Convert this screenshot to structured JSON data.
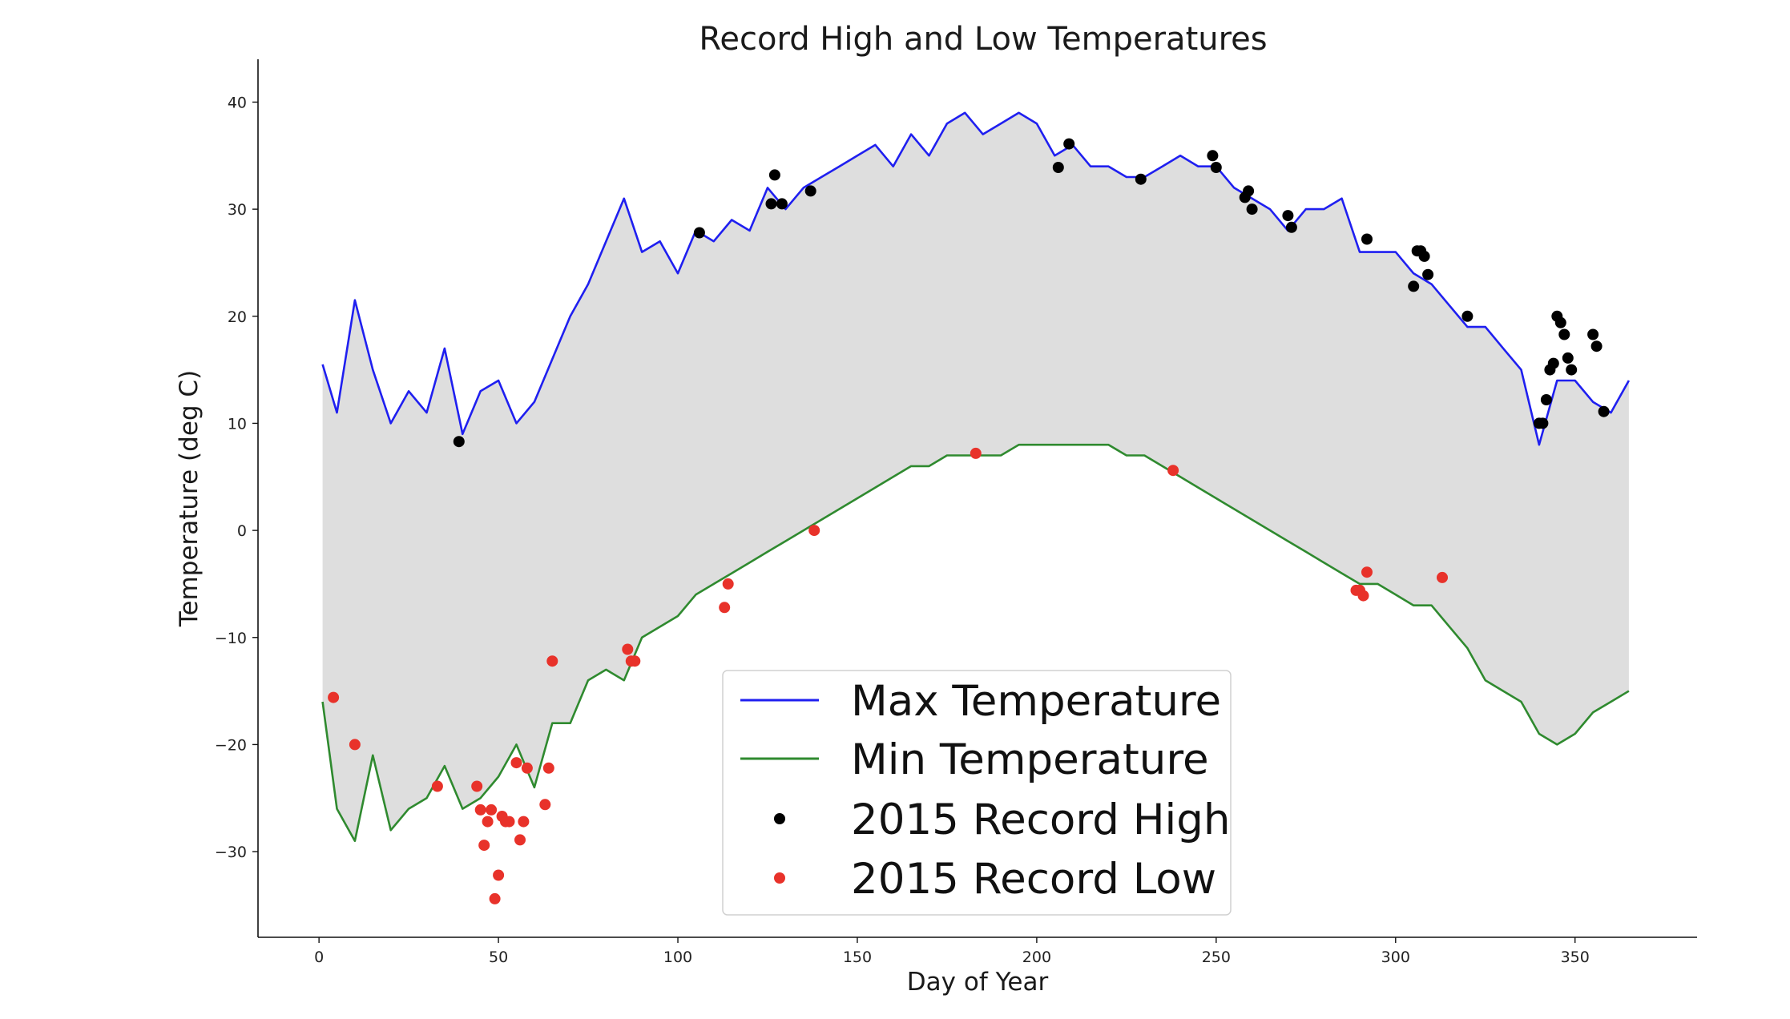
{
  "chart_data": {
    "type": "line",
    "title": "Record High and Low Temperatures",
    "xlabel": "Day of Year",
    "ylabel": "Temperature (deg C)",
    "xlim": [
      -17,
      384
    ],
    "ylim": [
      -38,
      44
    ],
    "xticks": [
      0,
      50,
      100,
      150,
      200,
      250,
      300,
      350
    ],
    "yticks": [
      -30,
      -20,
      -10,
      0,
      10,
      20,
      30,
      40
    ],
    "grid": false,
    "fill_between": {
      "color": "#dedede",
      "between": [
        "Max Temperature",
        "Min Temperature"
      ]
    },
    "legend": {
      "position": "lower-center"
    },
    "series": [
      {
        "name": "Max Temperature",
        "kind": "line",
        "color": "#1f1ff0",
        "x": [
          1,
          5,
          10,
          15,
          20,
          25,
          30,
          35,
          40,
          45,
          50,
          55,
          60,
          65,
          70,
          75,
          80,
          85,
          90,
          95,
          100,
          105,
          110,
          115,
          120,
          125,
          130,
          135,
          140,
          145,
          150,
          155,
          160,
          165,
          170,
          175,
          180,
          185,
          190,
          195,
          200,
          205,
          210,
          215,
          220,
          225,
          230,
          235,
          240,
          245,
          250,
          255,
          260,
          265,
          270,
          275,
          280,
          285,
          290,
          295,
          300,
          305,
          310,
          315,
          320,
          325,
          330,
          335,
          340,
          345,
          350,
          355,
          360,
          365
        ],
        "y": [
          15.5,
          11,
          21.5,
          15,
          10,
          13,
          11,
          17,
          9,
          13,
          14,
          10,
          12,
          16,
          20,
          23,
          27,
          31,
          26,
          27,
          24,
          28,
          27,
          29,
          28,
          32,
          30,
          32,
          33,
          34,
          35,
          36,
          34,
          37,
          35,
          38,
          39,
          37,
          38,
          39,
          38,
          35,
          36,
          34,
          34,
          33,
          33,
          34,
          35,
          34,
          34,
          32,
          31,
          30,
          28,
          30,
          30,
          31,
          26,
          26,
          26,
          24,
          23,
          21,
          19,
          19,
          17,
          15,
          8,
          14,
          14,
          12,
          11,
          14
        ]
      },
      {
        "name": "Min Temperature",
        "kind": "line",
        "color": "#2f8a2f",
        "x": [
          1,
          5,
          10,
          15,
          20,
          25,
          30,
          35,
          40,
          45,
          50,
          55,
          60,
          65,
          70,
          75,
          80,
          85,
          90,
          95,
          100,
          105,
          110,
          115,
          120,
          125,
          130,
          135,
          140,
          145,
          150,
          155,
          160,
          165,
          170,
          175,
          180,
          185,
          190,
          195,
          200,
          205,
          210,
          215,
          220,
          225,
          230,
          235,
          240,
          245,
          250,
          255,
          260,
          265,
          270,
          275,
          280,
          285,
          290,
          295,
          300,
          305,
          310,
          315,
          320,
          325,
          330,
          335,
          340,
          345,
          350,
          355,
          360,
          365
        ],
        "y": [
          -16,
          -26,
          -29,
          -21,
          -28,
          -26,
          -25,
          -22,
          -26,
          -25,
          -23,
          -20,
          -24,
          -18,
          -18,
          -14,
          -13,
          -14,
          -10,
          -9,
          -8,
          -6,
          -5,
          -4,
          -3,
          -2,
          -1,
          0,
          1,
          2,
          3,
          4,
          5,
          6,
          6,
          7,
          7,
          7,
          7,
          8,
          8,
          8,
          8,
          8,
          8,
          7,
          7,
          6,
          5,
          4,
          3,
          2,
          1,
          0,
          -1,
          -2,
          -3,
          -4,
          -5,
          -5,
          -6,
          -7,
          -7,
          -9,
          -11,
          -14,
          -15,
          -16,
          -19,
          -20,
          -19,
          -17,
          -16,
          -15
        ]
      },
      {
        "name": "2015 Record High",
        "kind": "scatter",
        "color": "#000000",
        "x": [
          39,
          106,
          126,
          127,
          129,
          137,
          206,
          209,
          229,
          249,
          250,
          258,
          259,
          260,
          270,
          271,
          292,
          305,
          306,
          307,
          308,
          309,
          320,
          340,
          341,
          342,
          343,
          344,
          345,
          346,
          347,
          348,
          349,
          355,
          356,
          358
        ],
        "y": [
          8.3,
          27.8,
          30.5,
          33.2,
          30.5,
          31.7,
          33.9,
          36.1,
          32.8,
          35,
          33.9,
          31.1,
          31.7,
          30,
          29.4,
          28.3,
          27.2,
          22.8,
          26.1,
          26.1,
          25.6,
          23.9,
          20,
          10,
          10,
          12.2,
          15,
          15.6,
          20,
          19.4,
          18.3,
          16.1,
          15,
          18.3,
          17.2,
          11.1
        ]
      },
      {
        "name": "2015 Record Low",
        "kind": "scatter",
        "color": "#e8322a",
        "x": [
          4,
          10,
          33,
          44,
          45,
          46,
          47,
          48,
          49,
          50,
          51,
          52,
          53,
          55,
          56,
          57,
          58,
          63,
          64,
          65,
          86,
          87,
          88,
          113,
          114,
          138,
          183,
          238,
          289,
          290,
          291,
          292,
          313
        ],
        "y": [
          -15.6,
          -20,
          -23.9,
          -23.9,
          -26.1,
          -29.4,
          -27.2,
          -26.1,
          -34.4,
          -32.2,
          -26.7,
          -27.2,
          -27.2,
          -21.7,
          -28.9,
          -27.2,
          -22.2,
          -25.6,
          -22.2,
          -12.2,
          -11.1,
          -12.2,
          -12.2,
          -7.2,
          -5,
          0,
          7.2,
          5.6,
          -5.6,
          -5.6,
          -6.1,
          -3.9,
          -4.4
        ]
      }
    ]
  }
}
